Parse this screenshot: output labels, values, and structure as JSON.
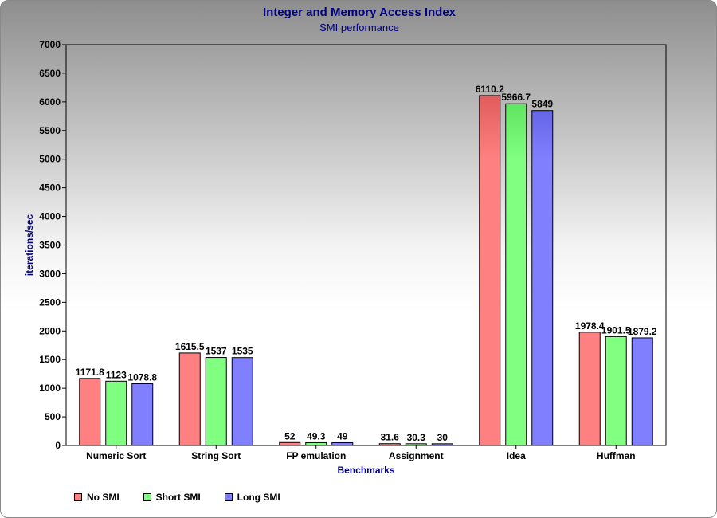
{
  "chart_data": {
    "type": "bar",
    "title": "Integer and Memory Access Index",
    "subtitle": "SMI performance",
    "xlabel": "Benchmarks",
    "ylabel": "iterations/sec",
    "ylim": [
      0,
      7000
    ],
    "yticks": [
      0,
      500,
      1000,
      1500,
      2000,
      2500,
      3000,
      3500,
      4000,
      4500,
      5000,
      5500,
      6000,
      6500,
      7000
    ],
    "grid": false,
    "legend_position": "bottom-left",
    "categories": [
      "Numeric Sort",
      "String Sort",
      "FP emulation",
      "Assignment",
      "Idea",
      "Huffman"
    ],
    "series": [
      {
        "name": "No SMI",
        "color": "#ff8080",
        "dark_color": "#c84040",
        "values": [
          1171.8,
          1615.5,
          52,
          31.6,
          6110.2,
          1978.4
        ]
      },
      {
        "name": "Short SMI",
        "color": "#80ff80",
        "dark_color": "#40c840",
        "values": [
          1123,
          1537,
          49.3,
          30.3,
          5966.7,
          1901.5
        ]
      },
      {
        "name": "Long SMI",
        "color": "#8080ff",
        "dark_color": "#4040c8",
        "values": [
          1078.8,
          1535,
          49,
          30,
          5849,
          1879.2
        ]
      }
    ],
    "gradient_above": 5000
  }
}
